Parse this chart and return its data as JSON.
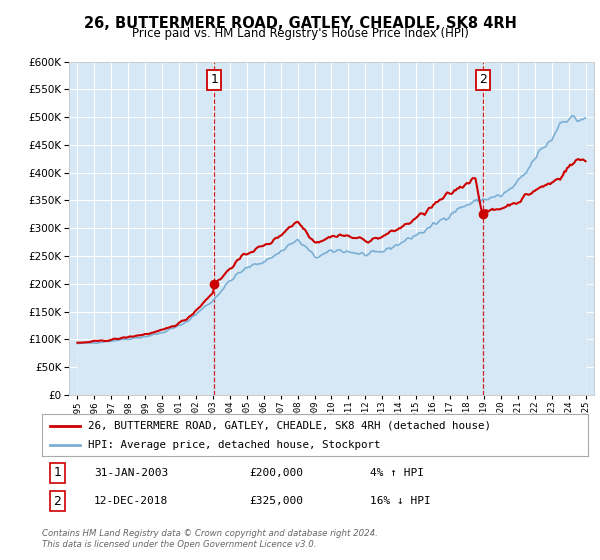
{
  "title": "26, BUTTERMERE ROAD, GATLEY, CHEADLE, SK8 4RH",
  "subtitle": "Price paid vs. HM Land Registry's House Price Index (HPI)",
  "legend_line1": "26, BUTTERMERE ROAD, GATLEY, CHEADLE, SK8 4RH (detached house)",
  "legend_line2": "HPI: Average price, detached house, Stockport",
  "annotation1_date": "31-JAN-2003",
  "annotation1_price": "£200,000",
  "annotation1_hpi": "4% ↑ HPI",
  "annotation2_date": "12-DEC-2018",
  "annotation2_price": "£325,000",
  "annotation2_hpi": "16% ↓ HPI",
  "footnote1": "Contains HM Land Registry data © Crown copyright and database right 2024.",
  "footnote2": "This data is licensed under the Open Government Licence v3.0.",
  "property_color": "#cc0000",
  "hpi_line_color": "#7bafd4",
  "hpi_fill_color": "#d6e8f5",
  "sale1_date_num": 2003.08,
  "sale1_price": 200000,
  "sale2_date_num": 2018.92,
  "sale2_price": 325000,
  "vline1_date": 2003.08,
  "vline2_date": 2018.92,
  "ylim_min": 0,
  "ylim_max": 600000,
  "xlim_min": 1994.5,
  "xlim_max": 2025.5,
  "hpi_anchors": {
    "1995.0": 92000,
    "1995.5": 93000,
    "1996.0": 94000,
    "1996.5": 95500,
    "1997.0": 97000,
    "1997.5": 99000,
    "1998.0": 101000,
    "1998.5": 103000,
    "1999.0": 105000,
    "1999.5": 108000,
    "2000.0": 112000,
    "2000.5": 118000,
    "2001.0": 124000,
    "2001.5": 133000,
    "2002.0": 145000,
    "2002.5": 158000,
    "2003.0": 170000,
    "2003.5": 188000,
    "2004.0": 205000,
    "2004.5": 218000,
    "2005.0": 228000,
    "2005.5": 235000,
    "2006.0": 240000,
    "2006.5": 248000,
    "2007.0": 258000,
    "2007.5": 270000,
    "2008.0": 278000,
    "2008.5": 265000,
    "2009.0": 248000,
    "2009.5": 252000,
    "2010.0": 258000,
    "2010.5": 260000,
    "2011.0": 258000,
    "2011.5": 255000,
    "2012.0": 252000,
    "2012.5": 254000,
    "2013.0": 258000,
    "2013.5": 265000,
    "2014.0": 272000,
    "2014.5": 280000,
    "2015.0": 288000,
    "2015.5": 295000,
    "2016.0": 305000,
    "2016.5": 315000,
    "2017.0": 325000,
    "2017.5": 335000,
    "2018.0": 342000,
    "2018.5": 348000,
    "2019.0": 352000,
    "2019.5": 355000,
    "2020.0": 358000,
    "2020.5": 368000,
    "2021.0": 382000,
    "2021.5": 400000,
    "2022.0": 425000,
    "2022.5": 445000,
    "2023.0": 460000,
    "2023.5": 490000,
    "2024.0": 500000,
    "2024.5": 495000,
    "2025.0": 498000
  },
  "prop_anchors": {
    "1995.0": 93000,
    "1995.5": 94500,
    "1996.0": 96000,
    "1996.5": 97500,
    "1997.0": 99000,
    "1997.5": 101500,
    "1998.0": 104000,
    "1998.5": 106500,
    "1999.0": 109000,
    "1999.5": 112000,
    "2000.0": 116000,
    "2000.5": 122000,
    "2001.0": 129000,
    "2001.5": 138000,
    "2002.0": 152000,
    "2002.5": 168000,
    "2003.0": 185000,
    "2003.08": 200000,
    "2003.5": 210000,
    "2004.0": 228000,
    "2004.5": 242000,
    "2005.0": 255000,
    "2005.5": 262000,
    "2006.0": 268000,
    "2006.5": 276000,
    "2007.0": 288000,
    "2007.5": 302000,
    "2008.0": 312000,
    "2008.5": 295000,
    "2009.0": 275000,
    "2009.5": 279000,
    "2010.0": 285000,
    "2010.5": 288000,
    "2011.0": 285000,
    "2011.5": 282000,
    "2012.0": 278000,
    "2012.5": 280000,
    "2013.0": 285000,
    "2013.5": 292000,
    "2014.0": 300000,
    "2014.5": 308000,
    "2015.0": 318000,
    "2015.5": 328000,
    "2016.0": 340000,
    "2016.5": 352000,
    "2017.0": 362000,
    "2017.5": 372000,
    "2018.0": 382000,
    "2018.5": 392000,
    "2018.92": 325000,
    "2019.0": 328000,
    "2019.5": 332000,
    "2020.0": 336000,
    "2020.5": 342000,
    "2021.0": 348000,
    "2021.5": 358000,
    "2022.0": 368000,
    "2022.5": 375000,
    "2023.0": 382000,
    "2023.5": 392000,
    "2024.0": 410000,
    "2024.5": 422000,
    "2025.0": 425000
  }
}
